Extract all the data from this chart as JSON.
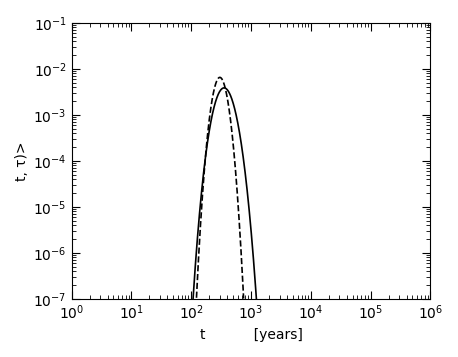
{
  "xlim": [
    1.0,
    1000000.0
  ],
  "ylim": [
    1e-07,
    0.1
  ],
  "xlabel_t": "t",
  "xlabel_units": "[years]",
  "ylabel": "t, τ)>",
  "solid_color": "#000000",
  "dashed_color": "#000000",
  "background_color": "#ffffff",
  "solid_params": {
    "mu": 400,
    "lambda": 5000
  },
  "dashed_params": {
    "mu": 320,
    "lambda": 8000
  }
}
